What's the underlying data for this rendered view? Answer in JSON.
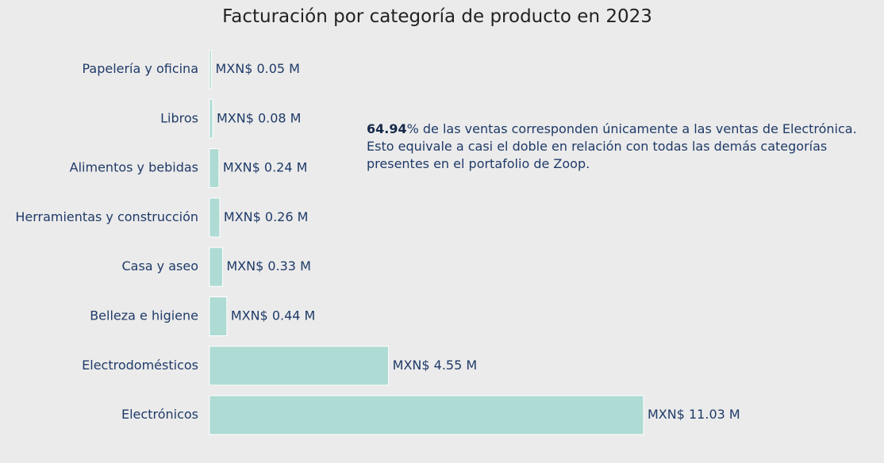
{
  "chart_data": {
    "type": "bar",
    "orientation": "horizontal",
    "title": "Facturación por categoría de producto en 2023",
    "categories": [
      "Papelería y oficina",
      "Libros",
      "Alimentos y bebidas",
      "Herramientas y construcción",
      "Casa y aseo",
      "Belleza e higiene",
      "Electrodomésticos",
      "Electrónicos"
    ],
    "values": [
      0.05,
      0.08,
      0.24,
      0.26,
      0.33,
      0.44,
      4.55,
      11.03
    ],
    "value_labels": [
      "MXN$ 0.05 M",
      "MXN$ 0.08 M",
      "MXN$ 0.24 M",
      "MXN$ 0.26 M",
      "MXN$ 0.33 M",
      "MXN$ 0.44 M",
      "MXN$ 4.55 M",
      "MXN$ 11.03 M"
    ],
    "unit": "MXN$ M",
    "xlim": [
      0,
      11.03
    ],
    "grid": false,
    "bar_color": "#aedbd4",
    "background": "#ebebeb",
    "label_color": "#1f3a68"
  },
  "annotation": {
    "highlight": "64.94",
    "line1_rest": "% de las ventas corresponden únicamente a las ventas de Electrónica.",
    "line2": "Esto equivale a casi el doble en relación con todas las demás categorías",
    "line3": "presentes en el portafolio de Zoop."
  }
}
